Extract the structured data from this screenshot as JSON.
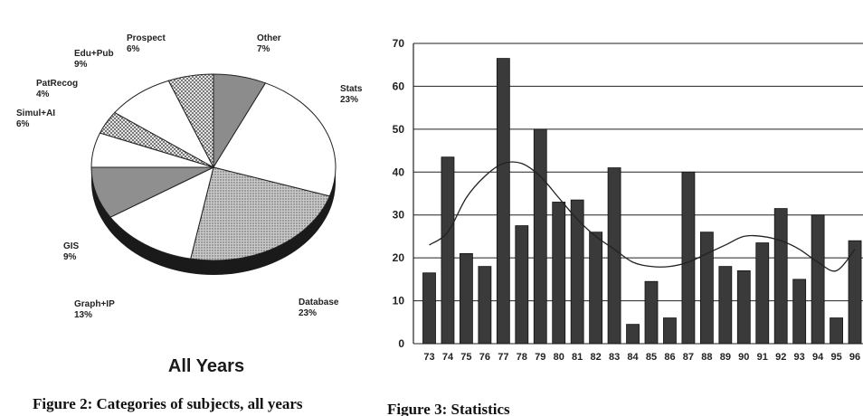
{
  "chart_data": [
    {
      "type": "pie",
      "title": "All Years",
      "caption": "Figure 2: Categories of subjects, all years",
      "slices": [
        {
          "name": "Other",
          "value": 7,
          "label": "7%",
          "fill": "#8c8c8c"
        },
        {
          "name": "Stats",
          "value": 23,
          "label": "23%",
          "fill": "#ffffff"
        },
        {
          "name": "Database",
          "value": 23,
          "label": "23%",
          "fill": "#b3b3b3"
        },
        {
          "name": "Graph+IP",
          "value": 13,
          "label": "13%",
          "fill": "#ffffff"
        },
        {
          "name": "GIS",
          "value": 9,
          "label": "9%",
          "fill": "#8f8f8f"
        },
        {
          "name": "Simul+AI",
          "value": 6,
          "label": "6%",
          "fill": "#ffffff"
        },
        {
          "name": "PatRecog",
          "value": 4,
          "label": "4%",
          "fill": "#cfcfcf"
        },
        {
          "name": "Edu+Pub",
          "value": 9,
          "label": "9%",
          "fill": "#ffffff"
        },
        {
          "name": "Prospect",
          "value": 6,
          "label": "6%",
          "fill": "#bdbdbd"
        }
      ]
    },
    {
      "type": "bar",
      "caption": "Figure 3: Statistics",
      "categories": [
        "73",
        "74",
        "75",
        "76",
        "77",
        "78",
        "79",
        "80",
        "81",
        "82",
        "83",
        "84",
        "85",
        "86",
        "87",
        "88",
        "89",
        "90",
        "91",
        "92",
        "93",
        "94",
        "95",
        "96"
      ],
      "values": [
        16.5,
        43.5,
        21,
        18,
        66.5,
        27.5,
        50,
        33,
        33.5,
        26,
        41,
        4.5,
        14.5,
        6,
        40,
        26,
        18,
        17,
        23.5,
        31.5,
        15,
        30,
        6,
        24
      ],
      "trend": [
        23,
        26,
        34,
        39,
        42,
        42,
        39,
        34,
        29,
        25,
        22,
        19,
        18,
        18,
        19,
        21,
        23,
        25,
        25,
        24,
        22,
        19,
        17,
        22
      ],
      "ylim": [
        0,
        70
      ],
      "yticks": [
        0,
        10,
        20,
        30,
        40,
        50,
        60,
        70
      ],
      "grid": true,
      "bar_color": "#3a3a3a"
    }
  ]
}
